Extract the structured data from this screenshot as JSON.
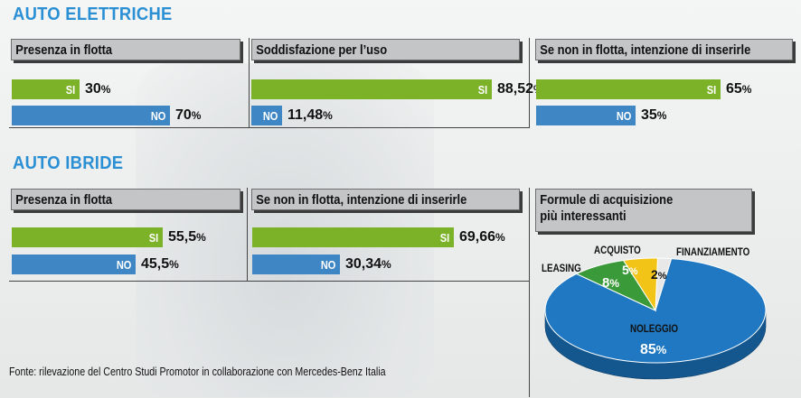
{
  "sections": {
    "elettriche": "AUTO ELETTRICHE",
    "ibride": "AUTO IBRIDE"
  },
  "chart_data": [
    {
      "type": "bar",
      "section": "AUTO ELETTRICHE",
      "title": "Presenza in flotta",
      "categories": [
        "SI",
        "NO"
      ],
      "values": [
        30,
        70
      ],
      "labels": [
        "30",
        "70"
      ],
      "unit": "%",
      "colors": [
        "#7cb227",
        "#3f86c5"
      ]
    },
    {
      "type": "bar",
      "section": "AUTO ELETTRICHE",
      "title": "Soddisfazione per l’uso",
      "categories": [
        "SI",
        "NO"
      ],
      "values": [
        88.52,
        11.48
      ],
      "labels": [
        "88,52",
        "11,48"
      ],
      "unit": "%",
      "colors": [
        "#7cb227",
        "#3f86c5"
      ]
    },
    {
      "type": "bar",
      "section": "AUTO ELETTRICHE",
      "title": "Se non in flotta, intenzione di inserirle",
      "categories": [
        "SI",
        "NO"
      ],
      "values": [
        65,
        35
      ],
      "labels": [
        "65",
        "35"
      ],
      "unit": "%",
      "colors": [
        "#7cb227",
        "#3f86c5"
      ]
    },
    {
      "type": "bar",
      "section": "AUTO IBRIDE",
      "title": "Presenza in flotta",
      "categories": [
        "SI",
        "NO"
      ],
      "values": [
        55.5,
        45.5
      ],
      "labels": [
        "55,5",
        "45,5"
      ],
      "unit": "%",
      "colors": [
        "#7cb227",
        "#3f86c5"
      ]
    },
    {
      "type": "bar",
      "section": "AUTO IBRIDE",
      "title": "Se non in flotta, intenzione di inserirle",
      "categories": [
        "SI",
        "NO"
      ],
      "values": [
        69.66,
        30.34
      ],
      "labels": [
        "69,66",
        "30,34"
      ],
      "unit": "%",
      "colors": [
        "#7cb227",
        "#3f86c5"
      ]
    },
    {
      "type": "pie",
      "section": "AUTO IBRIDE",
      "title_lines": [
        "Formule di acquisizione",
        "più interessanti"
      ],
      "categories": [
        "NOLEGGIO",
        "LEASING",
        "ACQUISTO",
        "FINANZIAMENTO"
      ],
      "values": [
        85,
        8,
        5,
        2
      ],
      "labels": [
        "85",
        "8",
        "5",
        "2"
      ],
      "unit": "%",
      "colors": [
        "#1f78c1",
        "#3a9a3a",
        "#f2c417",
        "#e8e8e8"
      ]
    }
  ],
  "source": "Fonte: rilevazione del Centro Studi Promotor in collaborazione con Mercedes-Benz Italia"
}
